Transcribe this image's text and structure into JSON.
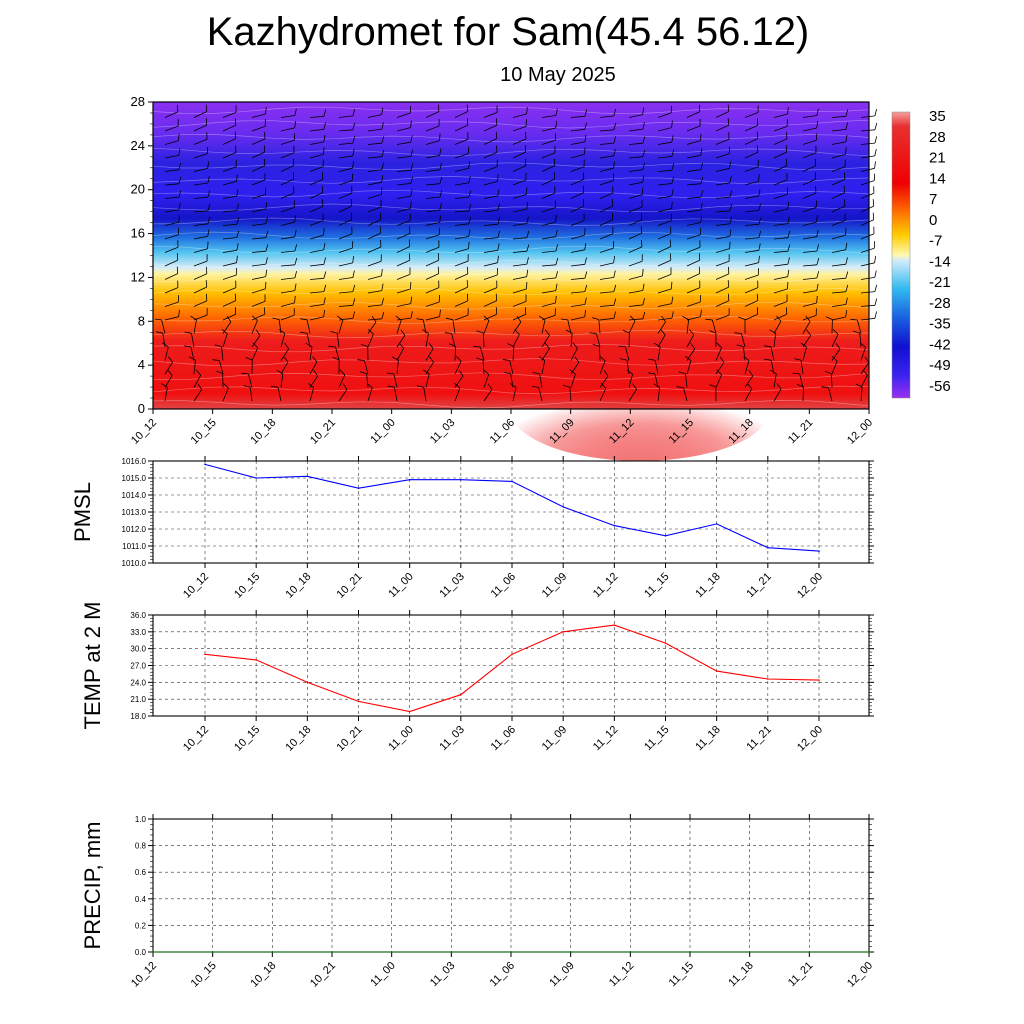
{
  "title": "Kazhydromet for Sam(45.4 56.12)",
  "subtitle": "10 May 2025",
  "time_labels": [
    "10_12",
    "10_15",
    "10_18",
    "10_21",
    "11_00",
    "11_03",
    "11_06",
    "11_09",
    "11_12",
    "11_15",
    "11_18",
    "11_21",
    "12_00"
  ],
  "colors": {
    "pmsl_line": "#0000ff",
    "temp_line": "#ff0000",
    "precip_line": "#006400"
  },
  "chart_data": [
    {
      "type": "heatmap",
      "name": "vertical-cross-section",
      "x": [
        "10_12",
        "10_15",
        "10_18",
        "10_21",
        "11_00",
        "11_03",
        "11_06",
        "11_09",
        "11_12",
        "11_15",
        "11_18",
        "11_21",
        "12_00"
      ],
      "y_ticks": [
        0,
        4,
        8,
        12,
        16,
        20,
        24,
        28
      ],
      "ylim": [
        0,
        28
      ],
      "colorbar_ticks": [
        35,
        28,
        21,
        14,
        7,
        0,
        -7,
        -14,
        -21,
        -28,
        -35,
        -42,
        -49,
        -56
      ],
      "colorbar_range": [
        -60,
        38
      ],
      "grid": false
    },
    {
      "type": "line",
      "name": "pmsl",
      "ylabel": "PMSL",
      "x": [
        "10_12",
        "10_15",
        "10_18",
        "10_21",
        "11_00",
        "11_03",
        "11_06",
        "11_09",
        "11_12",
        "11_15",
        "11_18",
        "11_21",
        "12_00"
      ],
      "values": [
        1015.8,
        1015.0,
        1015.1,
        1014.4,
        1014.9,
        1014.9,
        1014.8,
        1013.3,
        1012.2,
        1011.6,
        1012.3,
        1010.9,
        1010.7
      ],
      "ylim": [
        1010.0,
        1016.0
      ],
      "y_ticks": [
        "1010.0",
        "1011.0",
        "1012.0",
        "1013.0",
        "1014.0",
        "1015.0",
        "1016.0"
      ],
      "grid": true
    },
    {
      "type": "line",
      "name": "temp-2m",
      "ylabel": "TEMP at 2 M",
      "x": [
        "10_12",
        "10_15",
        "10_18",
        "10_21",
        "11_00",
        "11_03",
        "11_06",
        "11_09",
        "11_12",
        "11_15",
        "11_18",
        "11_21",
        "12_00"
      ],
      "values": [
        29.0,
        28.0,
        24.0,
        20.6,
        18.8,
        21.8,
        29.0,
        33.0,
        34.2,
        31.0,
        26.0,
        24.6,
        24.4
      ],
      "ylim": [
        18.0,
        36.0
      ],
      "y_ticks": [
        "18.0",
        "21.0",
        "24.0",
        "27.0",
        "30.0",
        "33.0",
        "36.0"
      ],
      "grid": true
    },
    {
      "type": "line",
      "name": "precip",
      "ylabel": "PRECIP, mm",
      "x": [
        "10_12",
        "10_15",
        "10_18",
        "10_21",
        "11_00",
        "11_03",
        "11_06",
        "11_09",
        "11_12",
        "11_15",
        "11_18",
        "11_21",
        "12_00"
      ],
      "values": [
        0,
        0,
        0,
        0,
        0,
        0,
        0,
        0,
        0,
        0,
        0,
        0,
        0
      ],
      "ylim": [
        0,
        1.0
      ],
      "y_ticks": [
        "0.0",
        "0.2",
        "0.4",
        "0.6",
        "0.8",
        "1.0"
      ],
      "grid": true
    }
  ]
}
